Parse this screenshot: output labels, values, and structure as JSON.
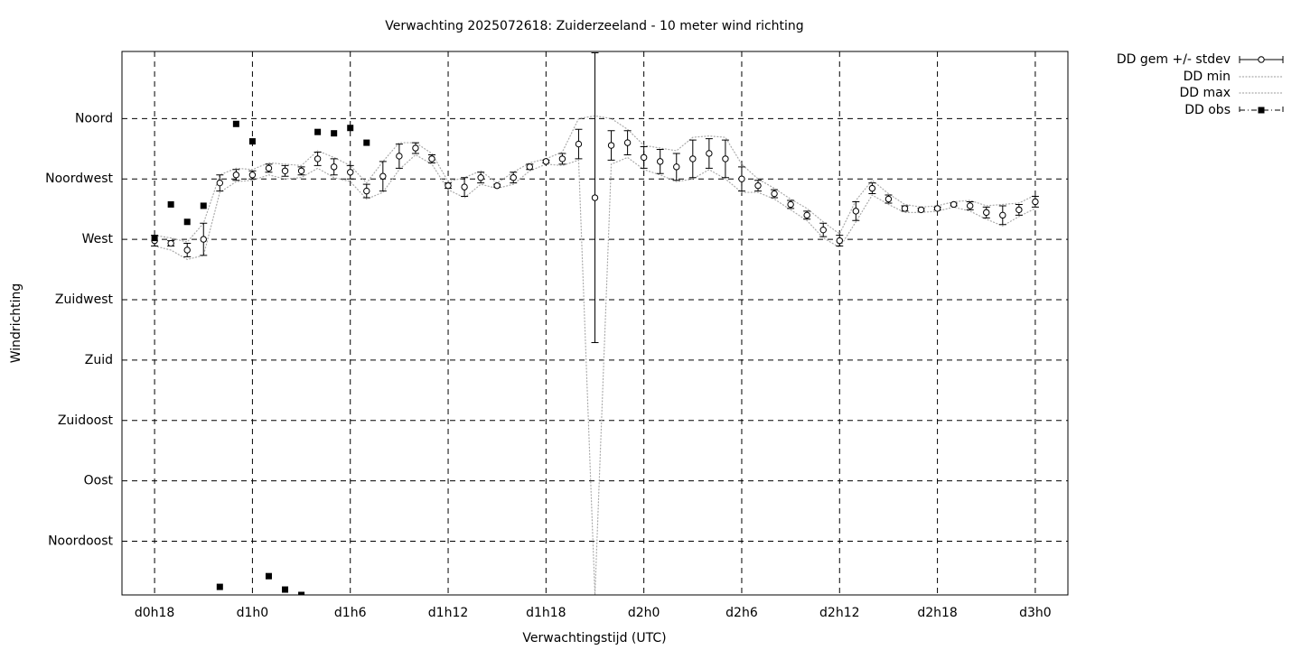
{
  "chart_data": {
    "type": "errorbar",
    "title": "Verwachting 2025072618: Zuiderzeeland - 10 meter wind richting",
    "x_label": "Verwachtingstijd (UTC)",
    "y_label": "Windrichting",
    "xlim": [
      16,
      74
    ],
    "ylim": [
      5,
      410
    ],
    "xticks": [
      {
        "value": 18,
        "label": "d0h18"
      },
      {
        "value": 24,
        "label": "d1h0"
      },
      {
        "value": 30,
        "label": "d1h6"
      },
      {
        "value": 36,
        "label": "d1h12"
      },
      {
        "value": 42,
        "label": "d1h18"
      },
      {
        "value": 48,
        "label": "d2h0"
      },
      {
        "value": 54,
        "label": "d2h6"
      },
      {
        "value": 60,
        "label": "d2h12"
      },
      {
        "value": 66,
        "label": "d2h18"
      },
      {
        "value": 72,
        "label": "d3h0"
      }
    ],
    "yticks": [
      {
        "value": 45,
        "label": "Noordoost"
      },
      {
        "value": 90,
        "label": "Oost"
      },
      {
        "value": 135,
        "label": "Zuidoost"
      },
      {
        "value": 180,
        "label": "Zuid"
      },
      {
        "value": 225,
        "label": "Zuidwest"
      },
      {
        "value": 270,
        "label": "West"
      },
      {
        "value": 315,
        "label": "Noordwest"
      },
      {
        "value": 360,
        "label": "Noord"
      }
    ],
    "grid": true,
    "legend": "top-right",
    "x": [
      18,
      19,
      20,
      21,
      22,
      23,
      24,
      25,
      26,
      27,
      28,
      29,
      30,
      31,
      32,
      33,
      34,
      35,
      36,
      37,
      38,
      39,
      40,
      41,
      42,
      43,
      44,
      45,
      46,
      47,
      48,
      49,
      50,
      51,
      52,
      53,
      54,
      55,
      56,
      57,
      58,
      59,
      60,
      61,
      62,
      63,
      64,
      65,
      66,
      67,
      68,
      69,
      70,
      71,
      72
    ],
    "series": [
      {
        "name": "DD gem +/- stdev",
        "color": "#000000",
        "values": [
          269,
          267,
          262,
          270,
          312,
          318,
          318,
          323,
          321,
          321,
          330,
          324,
          320,
          306,
          317,
          332,
          338,
          330,
          310,
          309,
          316,
          310,
          316,
          324,
          328,
          330,
          341,
          301,
          340,
          342,
          331,
          328,
          324,
          330,
          334,
          330,
          315,
          310,
          304,
          296,
          288,
          277,
          269,
          291,
          308,
          300,
          293,
          292,
          293,
          296,
          295,
          290,
          288,
          292,
          298
        ],
        "errors": [
          4,
          2,
          5,
          12,
          6,
          4,
          3,
          3,
          4,
          3,
          5,
          6,
          5,
          5,
          11,
          9,
          4,
          3,
          2,
          7,
          4,
          1,
          4,
          2,
          1,
          4,
          11,
          108,
          11,
          9,
          8,
          9,
          10,
          14,
          11,
          14,
          9,
          4,
          3,
          3,
          3,
          5,
          4,
          7,
          4,
          3,
          2,
          1,
          1,
          1,
          3,
          4,
          7,
          4,
          4
        ]
      },
      {
        "name": "DD min",
        "color": "#aaaaaa",
        "values": [
          265,
          262,
          255,
          258,
          305,
          313,
          314,
          318,
          315,
          316,
          323,
          316,
          313,
          300,
          305,
          322,
          333,
          326,
          307,
          301,
          311,
          308,
          311,
          321,
          326,
          325,
          329,
          5,
          326,
          331,
          322,
          318,
          313,
          315,
          322,
          315,
          305,
          305,
          300,
          292,
          284,
          271,
          264,
          283,
          303,
          296,
          290,
          290,
          291,
          294,
          291,
          285,
          280,
          287,
          293
        ]
      },
      {
        "name": "DD max",
        "color": "#aaaaaa",
        "values": [
          273,
          271,
          268,
          282,
          318,
          323,
          322,
          327,
          326,
          325,
          336,
          331,
          325,
          312,
          328,
          342,
          342,
          334,
          313,
          316,
          321,
          312,
          320,
          327,
          330,
          335,
          360,
          362,
          360,
          352,
          340,
          338,
          336,
          346,
          347,
          346,
          326,
          315,
          308,
          300,
          293,
          283,
          274,
          299,
          314,
          304,
          296,
          294,
          295,
          298,
          299,
          295,
          296,
          297,
          303
        ]
      },
      {
        "name": "DD obs",
        "color": "#000000",
        "x": [
          18,
          19,
          20,
          21,
          22,
          23,
          24,
          25,
          26,
          27,
          28,
          29,
          30,
          31
        ],
        "values": [
          271,
          296,
          283,
          295,
          11,
          356,
          343,
          19,
          9,
          5,
          350,
          349,
          353,
          342
        ]
      }
    ]
  }
}
